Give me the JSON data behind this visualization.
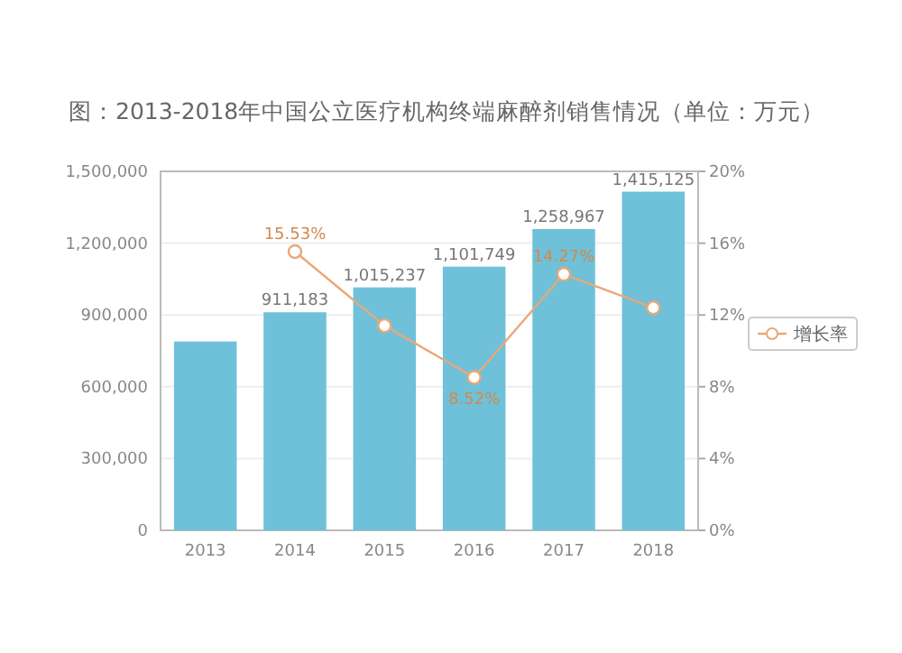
{
  "chart_data": {
    "type": "bar",
    "title": "图：2013-2018年中国公立医疗机构终端麻醉剂销售情况（单位：万元）",
    "categories": [
      "2013",
      "2014",
      "2015",
      "2016",
      "2017",
      "2018"
    ],
    "series": [
      {
        "color": "#6ec1d9",
        "values": [
          789000,
          911183,
          1015237,
          1101749,
          1258967,
          1415125
        ],
        "value_labels": [
          null,
          "911,183",
          "1,015,237",
          "1,101,749",
          "1,258,967",
          "1,415,125"
        ]
      },
      {
        "type": "line",
        "name": "增长率",
        "axis": "y2",
        "color": "#e8a878",
        "marker": "circle",
        "values": [
          null,
          15.53,
          11.4,
          8.52,
          14.27,
          12.4
        ],
        "value_labels": [
          null,
          "15.53%",
          null,
          "8.52%",
          "14.27%",
          null
        ]
      }
    ],
    "ylim": [
      0,
      1500000
    ],
    "yticks": [
      {
        "value": 0,
        "label": "0"
      },
      {
        "value": 300000,
        "label": "300,000"
      },
      {
        "value": 600000,
        "label": "600,000"
      },
      {
        "value": 900000,
        "label": "900,000"
      },
      {
        "value": 1200000,
        "label": "1,200,000"
      },
      {
        "value": 1500000,
        "label": "1,500,000"
      }
    ],
    "y2lim": [
      0,
      20
    ],
    "y2ticks": [
      {
        "value": 0,
        "label": "0%"
      },
      {
        "value": 4,
        "label": "4%"
      },
      {
        "value": 8,
        "label": "8%"
      },
      {
        "value": 12,
        "label": "12%"
      },
      {
        "value": 16,
        "label": "16%"
      },
      {
        "value": 20,
        "label": "20%"
      }
    ],
    "grid": "y",
    "legend": "right"
  }
}
